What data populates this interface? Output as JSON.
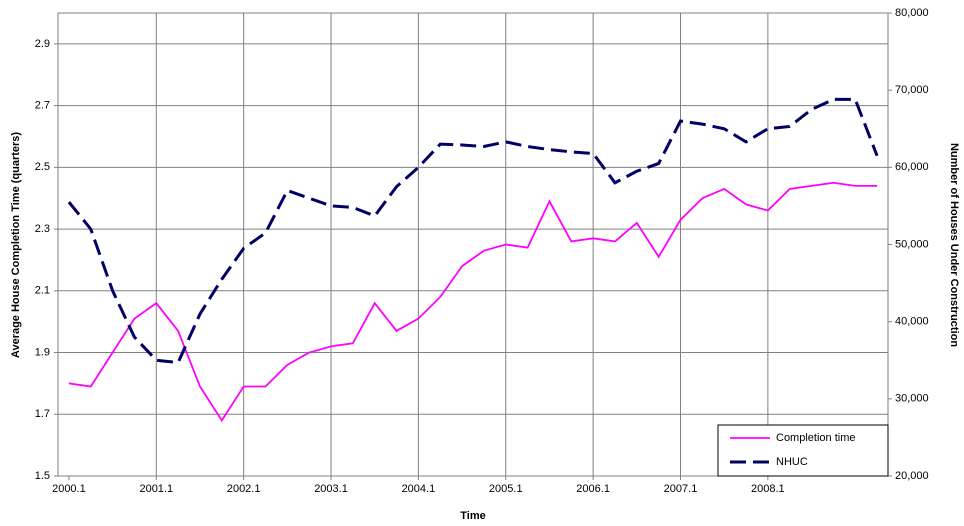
{
  "chart_data": {
    "type": "line",
    "x_label": "Time",
    "y_label": "Average House Completion Time (quarters)",
    "y2_label": "Number of Houses Under Construction",
    "categories": [
      "2000.1",
      null,
      null,
      null,
      "2001.1",
      null,
      null,
      null,
      "2002.1",
      null,
      null,
      null,
      "2003.1",
      null,
      null,
      null,
      "2004.1",
      null,
      null,
      null,
      "2005.1",
      null,
      null,
      null,
      "2006.1",
      null,
      null,
      null,
      "2007.1",
      null,
      null,
      null,
      "2008.1",
      null,
      null,
      null,
      null,
      null
    ],
    "series": [
      {
        "name": "Completion time",
        "color": "#ff00ff",
        "axis": "y",
        "values": [
          1.8,
          1.79,
          1.9,
          2.01,
          2.06,
          1.97,
          1.79,
          1.68,
          1.79,
          1.79,
          1.86,
          1.9,
          1.92,
          1.93,
          2.06,
          1.97,
          2.01,
          2.08,
          2.18,
          2.23,
          2.25,
          2.24,
          2.39,
          2.26,
          2.27,
          2.26,
          2.32,
          2.21,
          2.33,
          2.4,
          2.43,
          2.38,
          2.36,
          2.43,
          2.44,
          2.45,
          2.44,
          2.44
        ]
      },
      {
        "name": "NHUC",
        "color": "#000066",
        "axis": "y2",
        "dashed": true,
        "values": [
          55500,
          52000,
          44000,
          38000,
          35000,
          34700,
          41000,
          45500,
          49500,
          51500,
          57000,
          56000,
          55000,
          54800,
          53700,
          57500,
          60000,
          63000,
          62900,
          62700,
          63300,
          62700,
          62300,
          62000,
          61800,
          58000,
          59500,
          60500,
          66000,
          65600,
          65000,
          63300,
          65000,
          65300,
          67500,
          68800,
          68800,
          61500
        ]
      }
    ],
    "ylim": [
      1.5,
      3.0
    ],
    "yticks": [
      1.5,
      1.7,
      1.9,
      2.1,
      2.3,
      2.5,
      2.7,
      2.9
    ],
    "y2lim": [
      20000,
      80000
    ],
    "y2ticks": [
      {
        "value": 20000,
        "label": "20,000"
      },
      {
        "value": 30000,
        "label": "30,000"
      },
      {
        "value": 40000,
        "label": "40,000"
      },
      {
        "value": 50000,
        "label": "50,000"
      },
      {
        "value": 60000,
        "label": "60,000"
      },
      {
        "value": 70000,
        "label": "70,000"
      },
      {
        "value": 80000,
        "label": "80,000"
      }
    ],
    "grid": true,
    "legend": "bottom-right"
  }
}
